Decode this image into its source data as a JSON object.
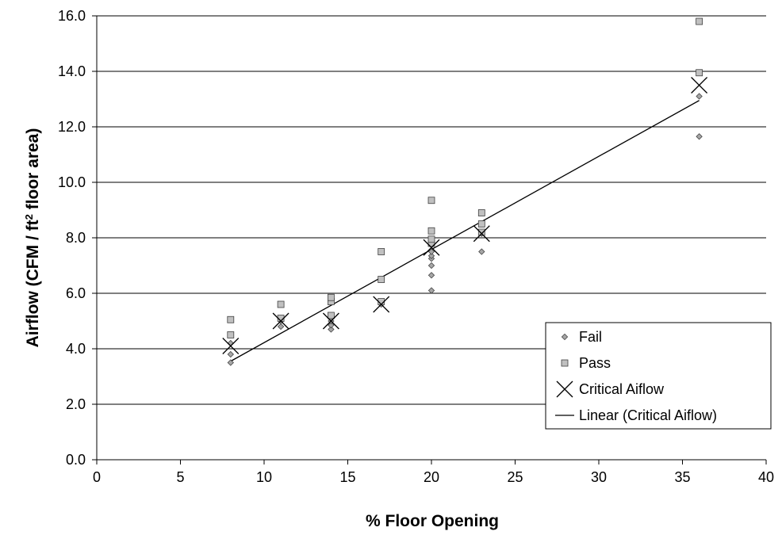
{
  "chart_data": {
    "type": "scatter",
    "title": "",
    "xlabel": "% Floor Opening",
    "ylabel_main": "Airflow  (CFM / ft",
    "ylabel_sup": "2",
    "ylabel_tail": " floor area)",
    "xlim": [
      0,
      40
    ],
    "ylim": [
      0,
      16
    ],
    "x_ticks": [
      0,
      5,
      10,
      15,
      20,
      25,
      30,
      35,
      40
    ],
    "x_tick_labels": [
      "0",
      "5",
      "10",
      "15",
      "20",
      "25",
      "30",
      "35",
      "40"
    ],
    "y_ticks": [
      0,
      2,
      4,
      6,
      8,
      10,
      12,
      14,
      16
    ],
    "y_tick_labels": [
      "0.0",
      "2.0",
      "4.0",
      "6.0",
      "8.0",
      "10.0",
      "12.0",
      "14.0",
      "16.0"
    ],
    "grid": "horizontal",
    "legend_position": "bottom-right",
    "series": [
      {
        "name": "Fail",
        "marker": "diamond",
        "color": "#a6a6a6",
        "points": [
          [
            8,
            3.5
          ],
          [
            8,
            3.8
          ],
          [
            8,
            4.2
          ],
          [
            11,
            4.8
          ],
          [
            11,
            5.0
          ],
          [
            14,
            4.7
          ],
          [
            14,
            4.85
          ],
          [
            14,
            5.0
          ],
          [
            14,
            5.1
          ],
          [
            17,
            5.6
          ],
          [
            20,
            6.1
          ],
          [
            20,
            6.65
          ],
          [
            20,
            7.0
          ],
          [
            20,
            7.25
          ],
          [
            20,
            7.35
          ],
          [
            20,
            7.5
          ],
          [
            23,
            7.5
          ],
          [
            23,
            8.15
          ],
          [
            36,
            11.65
          ],
          [
            36,
            13.1
          ]
        ]
      },
      {
        "name": "Pass",
        "marker": "square",
        "color": "#c0c0c0",
        "points": [
          [
            8,
            4.5
          ],
          [
            8,
            5.05
          ],
          [
            11,
            5.1
          ],
          [
            11,
            5.6
          ],
          [
            14,
            5.2
          ],
          [
            14,
            5.7
          ],
          [
            14,
            5.85
          ],
          [
            17,
            5.7
          ],
          [
            17,
            6.5
          ],
          [
            17,
            7.5
          ],
          [
            20,
            7.8
          ],
          [
            20,
            7.95
          ],
          [
            20,
            8.25
          ],
          [
            20,
            9.35
          ],
          [
            23,
            8.2
          ],
          [
            23,
            8.5
          ],
          [
            23,
            8.9
          ],
          [
            36,
            13.95
          ],
          [
            36,
            15.8
          ]
        ]
      },
      {
        "name": "Critical Aiflow",
        "marker": "x",
        "color": "#000000",
        "points": [
          [
            8,
            4.1
          ],
          [
            11,
            5.0
          ],
          [
            14,
            5.0
          ],
          [
            17,
            5.6
          ],
          [
            20,
            7.65
          ],
          [
            23,
            8.15
          ],
          [
            36,
            13.5
          ]
        ]
      },
      {
        "name": "Linear (Critical Aiflow)",
        "marker": "line",
        "color": "#000000",
        "points": [
          [
            8,
            3.55
          ],
          [
            36,
            12.95
          ]
        ]
      }
    ]
  }
}
